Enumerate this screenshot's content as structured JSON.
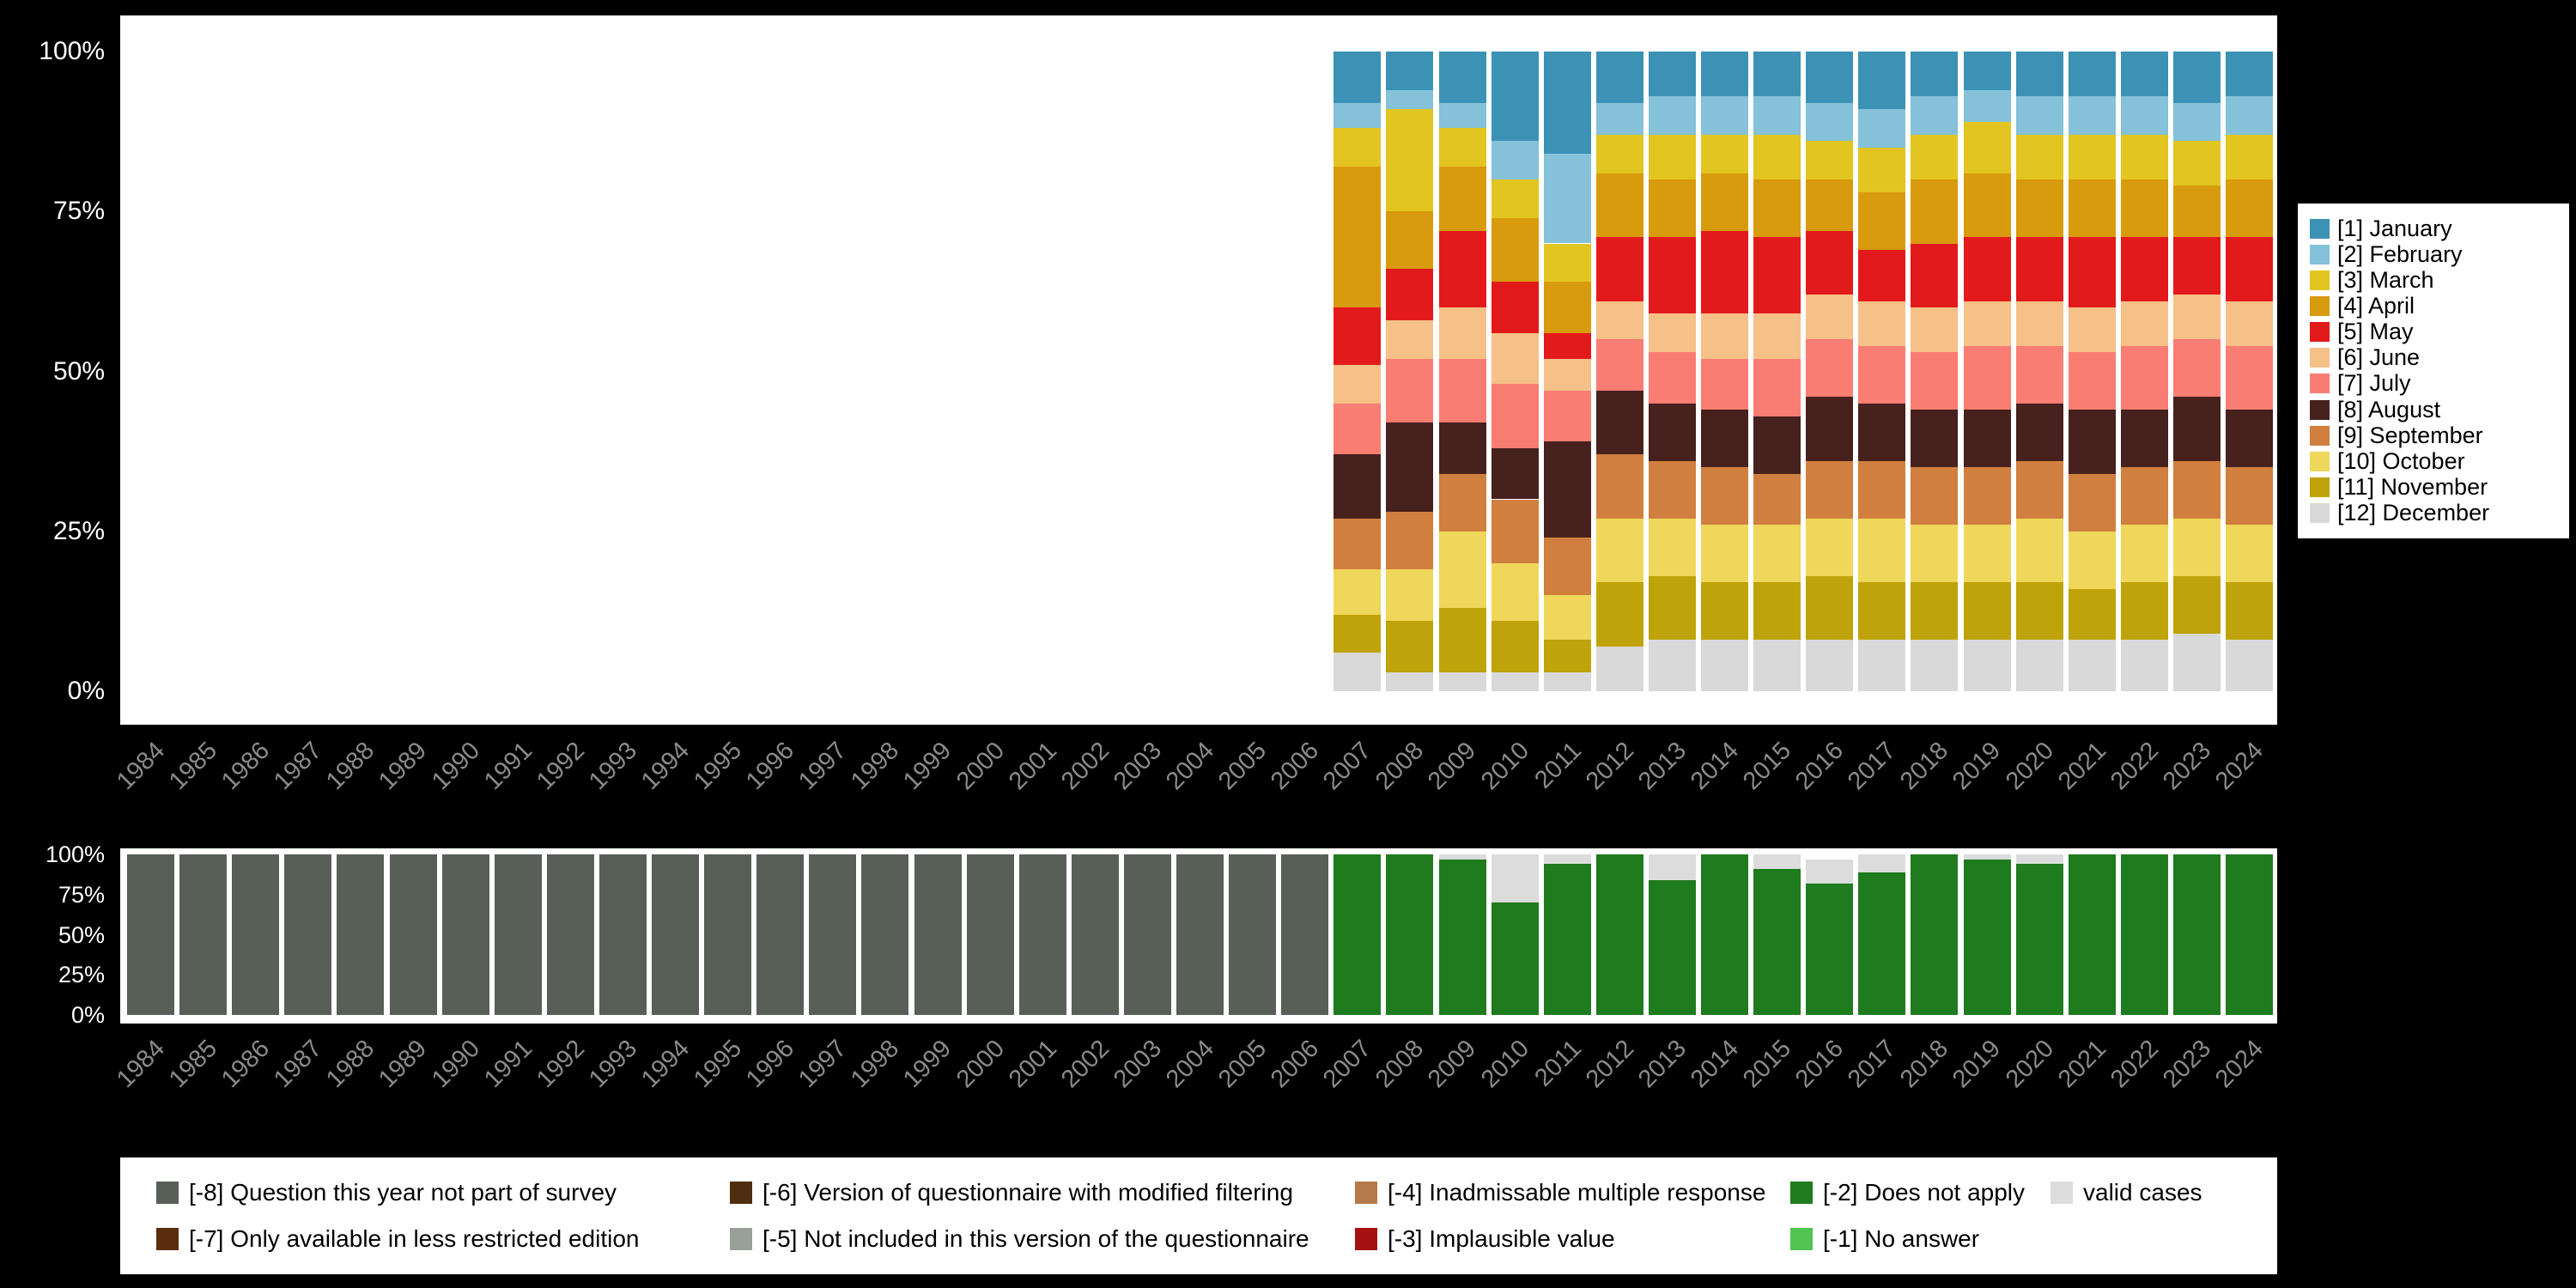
{
  "colors": {
    "background": "#000000",
    "panel": "#ffffff",
    "year_label_text": "#8a8a8a",
    "ytick_label_text": "#ffffff",
    "legend_text": "#000000"
  },
  "chart_data": [
    {
      "id": "interview-month-distribution",
      "type": "bar",
      "stacked": true,
      "title": "",
      "xlabel": "",
      "ylabel": "",
      "ylim": [
        0,
        100
      ],
      "yticks": [
        "100%",
        "75%",
        "50%",
        "25%",
        "0%"
      ],
      "grid": false,
      "legend_position": "right",
      "stack_order": "reverse",
      "categories": [
        "1984",
        "1985",
        "1986",
        "1987",
        "1988",
        "1989",
        "1990",
        "1991",
        "1992",
        "1993",
        "1994",
        "1995",
        "1996",
        "1997",
        "1998",
        "1999",
        "2000",
        "2001",
        "2002",
        "2003",
        "2004",
        "2005",
        "2006",
        "2007",
        "2008",
        "2009",
        "2010",
        "2011",
        "2012",
        "2013",
        "2014",
        "2015",
        "2016",
        "2017",
        "2018",
        "2019",
        "2020",
        "2021",
        "2022",
        "2023",
        "2024"
      ],
      "data_years": [
        "2007",
        "2008",
        "2009",
        "2010",
        "2011",
        "2012",
        "2013",
        "2014",
        "2015",
        "2016",
        "2017",
        "2018",
        "2019",
        "2020",
        "2021",
        "2022",
        "2023",
        "2024"
      ],
      "series": [
        {
          "name": "[1] January",
          "color": "#3c92b4",
          "values": [
            8,
            6,
            8,
            14,
            16,
            8,
            7,
            7,
            7,
            8,
            9,
            7,
            6,
            7,
            7,
            7,
            8,
            7
          ]
        },
        {
          "name": "[2] February",
          "color": "#85c1d8",
          "values": [
            4,
            3,
            4,
            6,
            14,
            5,
            6,
            6,
            6,
            6,
            6,
            6,
            5,
            6,
            6,
            6,
            6,
            6
          ]
        },
        {
          "name": "[3] March",
          "color": "#e2c521",
          "values": [
            6,
            16,
            6,
            6,
            6,
            6,
            7,
            6,
            7,
            6,
            7,
            7,
            8,
            7,
            7,
            7,
            7,
            7
          ]
        },
        {
          "name": "[4] April",
          "color": "#d89b0d",
          "values": [
            22,
            9,
            10,
            10,
            8,
            10,
            9,
            9,
            9,
            8,
            9,
            10,
            10,
            9,
            9,
            9,
            8,
            9
          ]
        },
        {
          "name": "[5] May",
          "color": "#e31a1c",
          "values": [
            9,
            8,
            12,
            8,
            4,
            10,
            12,
            13,
            12,
            10,
            8,
            10,
            10,
            10,
            11,
            10,
            9,
            10
          ]
        },
        {
          "name": "[6] June",
          "color": "#f5c188",
          "values": [
            6,
            6,
            8,
            8,
            5,
            6,
            6,
            7,
            7,
            7,
            7,
            7,
            7,
            7,
            7,
            7,
            7,
            7
          ]
        },
        {
          "name": "[7] July",
          "color": "#fa7d73",
          "values": [
            8,
            10,
            10,
            10,
            8,
            8,
            8,
            8,
            9,
            9,
            9,
            9,
            10,
            9,
            9,
            10,
            9,
            10
          ]
        },
        {
          "name": "[8] August",
          "color": "#46211e",
          "values": [
            10,
            14,
            8,
            8,
            15,
            10,
            9,
            9,
            9,
            10,
            9,
            9,
            9,
            9,
            10,
            9,
            10,
            9
          ]
        },
        {
          "name": "[9] September",
          "color": "#d07f3e",
          "values": [
            8,
            9,
            9,
            10,
            9,
            10,
            9,
            9,
            8,
            9,
            9,
            9,
            9,
            9,
            9,
            9,
            9,
            9
          ]
        },
        {
          "name": "[10] October",
          "color": "#eed75a",
          "values": [
            7,
            8,
            12,
            9,
            7,
            10,
            9,
            9,
            9,
            9,
            10,
            9,
            9,
            10,
            9,
            9,
            9,
            9
          ]
        },
        {
          "name": "[11] November",
          "color": "#bfa30a",
          "values": [
            6,
            8,
            10,
            8,
            5,
            10,
            10,
            9,
            9,
            10,
            9,
            9,
            9,
            9,
            8,
            9,
            9,
            9
          ]
        },
        {
          "name": "[12] December",
          "color": "#d9d9d9",
          "values": [
            6,
            3,
            3,
            3,
            3,
            7,
            8,
            8,
            8,
            8,
            8,
            8,
            8,
            8,
            8,
            8,
            9,
            8
          ]
        }
      ]
    },
    {
      "id": "missing-values-by-year",
      "type": "bar",
      "stacked": true,
      "title": "",
      "xlabel": "",
      "ylabel": "",
      "ylim": [
        0,
        100
      ],
      "yticks": [
        "100%",
        "75%",
        "50%",
        "25%",
        "0%"
      ],
      "grid": false,
      "legend_position": "bottom",
      "stack_order": "normal",
      "categories": [
        "1984",
        "1985",
        "1986",
        "1987",
        "1988",
        "1989",
        "1990",
        "1991",
        "1992",
        "1993",
        "1994",
        "1995",
        "1996",
        "1997",
        "1998",
        "1999",
        "2000",
        "2001",
        "2002",
        "2003",
        "2004",
        "2005",
        "2006",
        "2007",
        "2008",
        "2009",
        "2010",
        "2011",
        "2012",
        "2013",
        "2014",
        "2015",
        "2016",
        "2017",
        "2018",
        "2019",
        "2020",
        "2021",
        "2022",
        "2023",
        "2024"
      ],
      "series": [
        {
          "name": "[-8] Question this year not part of survey",
          "color": "#575f57",
          "values": [
            100,
            100,
            100,
            100,
            100,
            100,
            100,
            100,
            100,
            100,
            100,
            100,
            100,
            100,
            100,
            100,
            100,
            100,
            100,
            100,
            100,
            100,
            100,
            0,
            0,
            0,
            0,
            0,
            0,
            0,
            0,
            0,
            0,
            0,
            0,
            0,
            0,
            0,
            0,
            0,
            0
          ]
        },
        {
          "name": "[-2] Does not apply",
          "color": "#1e7b1e",
          "values": [
            0,
            0,
            0,
            0,
            0,
            0,
            0,
            0,
            0,
            0,
            0,
            0,
            0,
            0,
            0,
            0,
            0,
            0,
            0,
            0,
            0,
            0,
            0,
            100,
            100,
            97,
            70,
            94,
            100,
            84,
            100,
            91,
            82,
            89,
            100,
            97,
            94,
            100,
            100,
            100,
            100
          ]
        },
        {
          "name": "valid cases",
          "color": "#dcdcdc",
          "values": [
            0,
            0,
            0,
            0,
            0,
            0,
            0,
            0,
            0,
            0,
            0,
            0,
            0,
            0,
            0,
            0,
            0,
            0,
            0,
            0,
            0,
            0,
            0,
            0,
            0,
            3,
            30,
            6,
            0,
            16,
            0,
            9,
            15,
            11,
            0,
            3,
            6,
            0,
            0,
            0,
            0
          ]
        }
      ]
    }
  ],
  "legend_missing": {
    "items": [
      {
        "label": "[-8] Question this year not part of survey",
        "color": "#575f57"
      },
      {
        "label": "[-7] Only available in less restricted edition",
        "color": "#5b2c0e"
      },
      {
        "label": "[-6] Version of questionnaire with modified filtering",
        "color": "#4f2d10"
      },
      {
        "label": "[-5] Not included in this version of the questionnaire",
        "color": "#9aa19b"
      },
      {
        "label": "[-4] Inadmissable multiple response",
        "color": "#b5794a"
      },
      {
        "label": "[-3] Implausible value",
        "color": "#a51212"
      },
      {
        "label": "[-2] Does not apply",
        "color": "#1e7b1e"
      },
      {
        "label": "[-1] No answer",
        "color": "#52c452"
      },
      {
        "label": "valid cases",
        "color": "#dcdcdc"
      }
    ]
  }
}
